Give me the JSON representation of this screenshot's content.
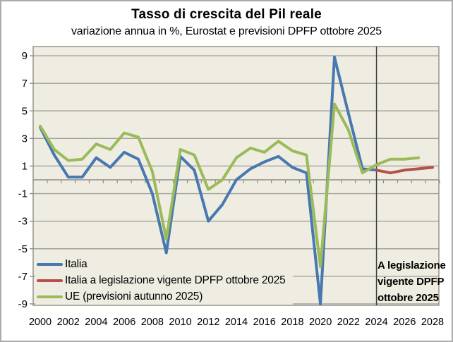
{
  "title": "Tasso di crescita del Pil reale",
  "subtitle": "variazione annua in %, Eurostat e previsioni DPFP ottobre 2025",
  "annotation": {
    "lines": [
      "A legislazione",
      "vigente DPFP",
      "ottobre 2025"
    ]
  },
  "ui_colors": {
    "plot_bg": "#EFEDE2",
    "grid": "#A3A29A",
    "axis": "#8E8D85",
    "divider": "#3C3C3C",
    "frame_border": "#ABABAB",
    "text": "#000000"
  },
  "chart_data": {
    "type": "line",
    "x_start": 2000,
    "x_end": 2028,
    "x_tick_labels": [
      "2000",
      "2002",
      "2004",
      "2006",
      "2008",
      "2010",
      "2012",
      "2014",
      "2016",
      "2018",
      "2020",
      "2022",
      "2024",
      "2026",
      "2028"
    ],
    "y_ticks": [
      9,
      7,
      5,
      3,
      1,
      -1,
      -3,
      -5,
      -7,
      -9
    ],
    "ylim": [
      -9.1,
      9.7
    ],
    "grid": true,
    "legend_position": "inside-bottom-left",
    "divider_year": 2024,
    "series": [
      {
        "name": "Italia",
        "color": "#4878B0",
        "start_year": 2000,
        "values": [
          3.8,
          1.8,
          0.2,
          0.2,
          1.6,
          0.9,
          2.0,
          1.5,
          -1.0,
          -5.3,
          1.7,
          0.7,
          -3.0,
          -1.8,
          0.0,
          0.8,
          1.3,
          1.7,
          0.9,
          0.5,
          -9.0,
          8.9,
          4.8,
          0.8,
          0.7
        ]
      },
      {
        "name": "Italia a legislazione vigente DPFP ottobre 2025",
        "color": "#B5504C",
        "start_year": 2024,
        "values": [
          0.7,
          0.5,
          0.7,
          0.8,
          0.9
        ]
      },
      {
        "name": "UE (previsioni autunno 2025)",
        "color": "#9CBA59",
        "start_year": 2000,
        "values": [
          3.9,
          2.2,
          1.4,
          1.5,
          2.6,
          2.2,
          3.4,
          3.1,
          0.6,
          -4.3,
          2.2,
          1.8,
          -0.7,
          0.0,
          1.6,
          2.3,
          2.0,
          2.8,
          2.1,
          1.8,
          -6.3,
          5.5,
          3.6,
          0.5,
          1.1,
          1.5,
          1.5,
          1.6
        ]
      }
    ]
  }
}
